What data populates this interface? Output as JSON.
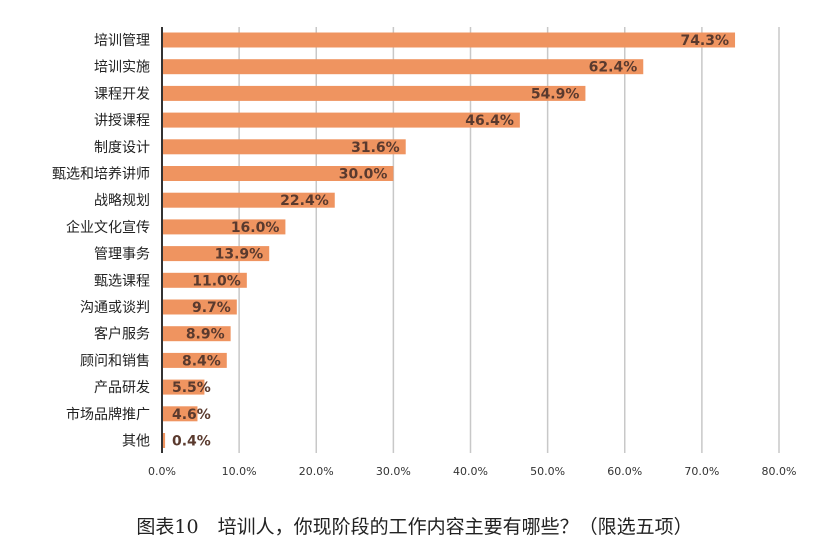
{
  "caption": "图表10　培训人，你现阶段的工作内容主要有哪些？（限选五项）",
  "colors": {
    "bar": "#EF9460",
    "grid": "#C8C8C8",
    "axis": "#333333"
  },
  "chart_data": {
    "type": "bar",
    "orientation": "horizontal",
    "categories": [
      "培训管理",
      "培训实施",
      "课程开发",
      "讲授课程",
      "制度设计",
      "甄选和培养讲师",
      "战略规划",
      "企业文化宣传",
      "管理事务",
      "甄选课程",
      "沟通或谈判",
      "客户服务",
      "顾问和销售",
      "产品研发",
      "市场品牌推广",
      "其他"
    ],
    "values": [
      74.3,
      62.4,
      54.9,
      46.4,
      31.6,
      30.0,
      22.4,
      16.0,
      13.9,
      11.0,
      9.7,
      8.9,
      8.4,
      5.5,
      4.6,
      0.4
    ],
    "data_labels": [
      "74.3%",
      "62.4%",
      "54.9%",
      "46.4%",
      "31.6%",
      "30.0%",
      "22.4%",
      "16.0%",
      "13.9%",
      "11.0%",
      "9.7%",
      "8.9%",
      "8.4%",
      "5.5%",
      "4.6%",
      "0.4%"
    ],
    "xlim": [
      0,
      80
    ],
    "x_ticks": [
      0,
      10,
      20,
      30,
      40,
      50,
      60,
      70,
      80
    ],
    "x_tick_labels": [
      "0.0%",
      "10.0%",
      "20.0%",
      "30.0%",
      "40.0%",
      "50.0%",
      "60.0%",
      "70.0%",
      "80.0%"
    ],
    "grid": true,
    "legend": "none",
    "title": "",
    "xlabel": "",
    "ylabel": ""
  }
}
